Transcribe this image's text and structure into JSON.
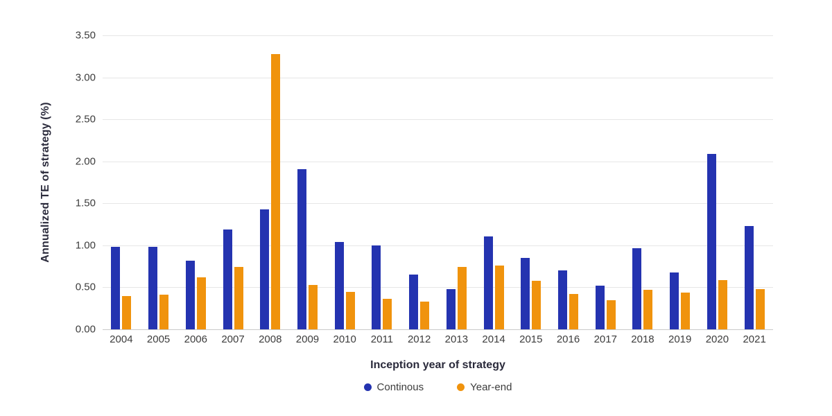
{
  "chart_data": {
    "type": "bar",
    "title": "",
    "xlabel": "Inception year of strategy",
    "ylabel": "Annualized TE of strategy (%)",
    "categories": [
      "2004",
      "2005",
      "2006",
      "2007",
      "2008",
      "2009",
      "2010",
      "2011",
      "2012",
      "2013",
      "2014",
      "2015",
      "2016",
      "2017",
      "2018",
      "2019",
      "2020",
      "2021"
    ],
    "series": [
      {
        "name": "Continous",
        "color": "#2433b0",
        "values": [
          0.98,
          0.98,
          0.82,
          1.19,
          1.43,
          1.91,
          1.04,
          1.0,
          0.65,
          0.48,
          1.11,
          0.85,
          0.7,
          0.52,
          0.97,
          0.68,
          2.09,
          1.23
        ]
      },
      {
        "name": "Year-end",
        "color": "#f0930d",
        "values": [
          0.4,
          0.41,
          0.62,
          0.74,
          3.28,
          0.53,
          0.45,
          0.36,
          0.33,
          0.74,
          0.76,
          0.58,
          0.42,
          0.35,
          0.47,
          0.44,
          0.59,
          0.48
        ]
      }
    ],
    "ylim": [
      0,
      3.5
    ],
    "ytick_step": 0.5,
    "ytick_labels": [
      "0.00",
      "0.50",
      "1.00",
      "1.50",
      "2.00",
      "2.50",
      "3.00",
      "3.50"
    ],
    "grid": true,
    "legend_position": "bottom"
  },
  "colors": {
    "background": "#ffffff",
    "gridline": "#e6e6e6",
    "axis_line": "#c9c9c9",
    "tick_text": "#3c3c3c",
    "axis_title_text": "#2a2a3b"
  }
}
